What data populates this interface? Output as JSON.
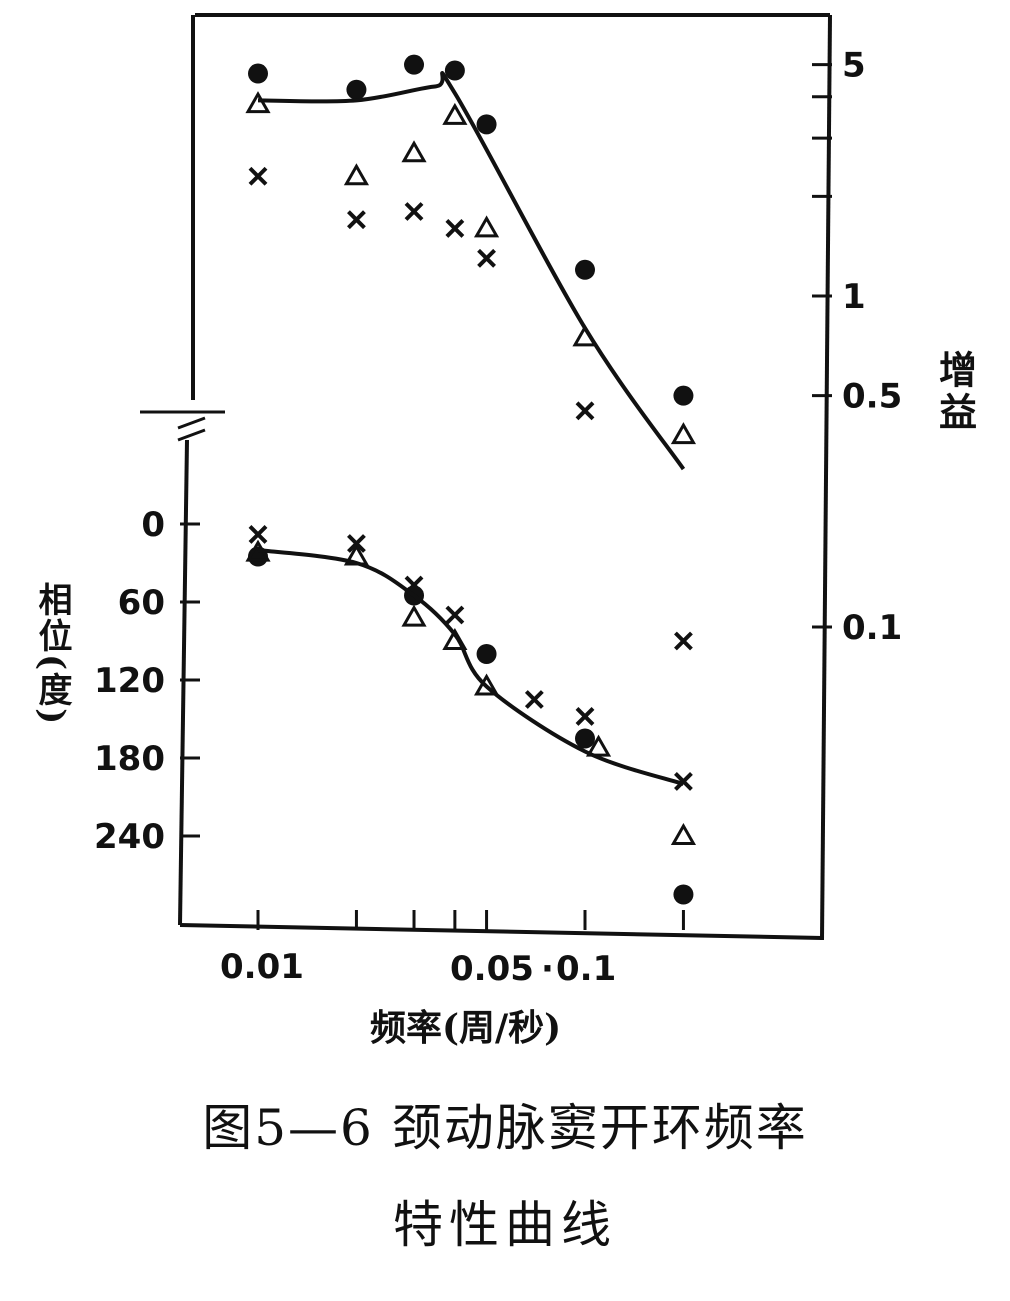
{
  "caption": {
    "line1": "图5—6   颈动脉窦开环频率",
    "line2": "特性曲线"
  },
  "chart_data": [
    {
      "type": "scatter",
      "panel": "gain",
      "axis_side": "right",
      "y_scale": "log",
      "ylabel": "增益",
      "y_ticks": [
        "5",
        "1",
        "0.5",
        "0.1"
      ],
      "series": [
        {
          "marker": "dot",
          "points": [
            [
              0.01,
              4.7
            ],
            [
              0.02,
              4.2
            ],
            [
              0.03,
              5.0
            ],
            [
              0.04,
              4.8
            ],
            [
              0.05,
              3.3
            ],
            [
              0.1,
              1.2
            ],
            [
              0.2,
              0.5
            ]
          ]
        },
        {
          "marker": "triangle",
          "points": [
            [
              0.01,
              3.8
            ],
            [
              0.02,
              2.3
            ],
            [
              0.03,
              2.7
            ],
            [
              0.04,
              3.5
            ],
            [
              0.05,
              1.6
            ],
            [
              0.1,
              0.75
            ],
            [
              0.2,
              0.38
            ]
          ]
        },
        {
          "marker": "cross",
          "points": [
            [
              0.01,
              2.3
            ],
            [
              0.02,
              1.7
            ],
            [
              0.03,
              1.8
            ],
            [
              0.04,
              1.6
            ],
            [
              0.05,
              1.3
            ],
            [
              0.1,
              0.45
            ]
          ]
        },
        {
          "marker": "line",
          "points": [
            [
              0.01,
              3.9
            ],
            [
              0.02,
              3.9
            ],
            [
              0.035,
              4.3
            ],
            [
              0.04,
              4.1
            ],
            [
              0.1,
              0.8
            ],
            [
              0.2,
              0.3
            ]
          ]
        }
      ]
    },
    {
      "type": "scatter",
      "panel": "phase",
      "axis_side": "left",
      "ylabel": "相位(度)",
      "y_ticks": [
        "0",
        "60",
        "120",
        "180",
        "240"
      ],
      "series": [
        {
          "marker": "dot",
          "points": [
            [
              0.01,
              25
            ],
            [
              0.03,
              55
            ],
            [
              0.05,
              100
            ],
            [
              0.1,
              165
            ],
            [
              0.2,
              285
            ]
          ]
        },
        {
          "marker": "triangle",
          "points": [
            [
              0.01,
              22
            ],
            [
              0.02,
              25
            ],
            [
              0.03,
              72
            ],
            [
              0.04,
              90
            ],
            [
              0.05,
              125
            ],
            [
              0.11,
              172
            ],
            [
              0.2,
              240
            ]
          ]
        },
        {
          "marker": "cross",
          "points": [
            [
              0.01,
              8
            ],
            [
              0.02,
              15
            ],
            [
              0.03,
              47
            ],
            [
              0.04,
              70
            ],
            [
              0.07,
              135
            ],
            [
              0.1,
              148
            ],
            [
              0.2,
              198
            ],
            [
              0.2,
              90
            ]
          ]
        },
        {
          "marker": "line",
          "points": [
            [
              0.01,
              20
            ],
            [
              0.02,
              30
            ],
            [
              0.03,
              55
            ],
            [
              0.04,
              85
            ],
            [
              0.05,
              125
            ],
            [
              0.1,
              175
            ],
            [
              0.2,
              200
            ]
          ]
        }
      ]
    }
  ],
  "x_axis": {
    "scale": "log",
    "xlabel": "频率(周/秒)",
    "tick_labels": [
      "0.01",
      "0.05",
      "0.1"
    ]
  }
}
